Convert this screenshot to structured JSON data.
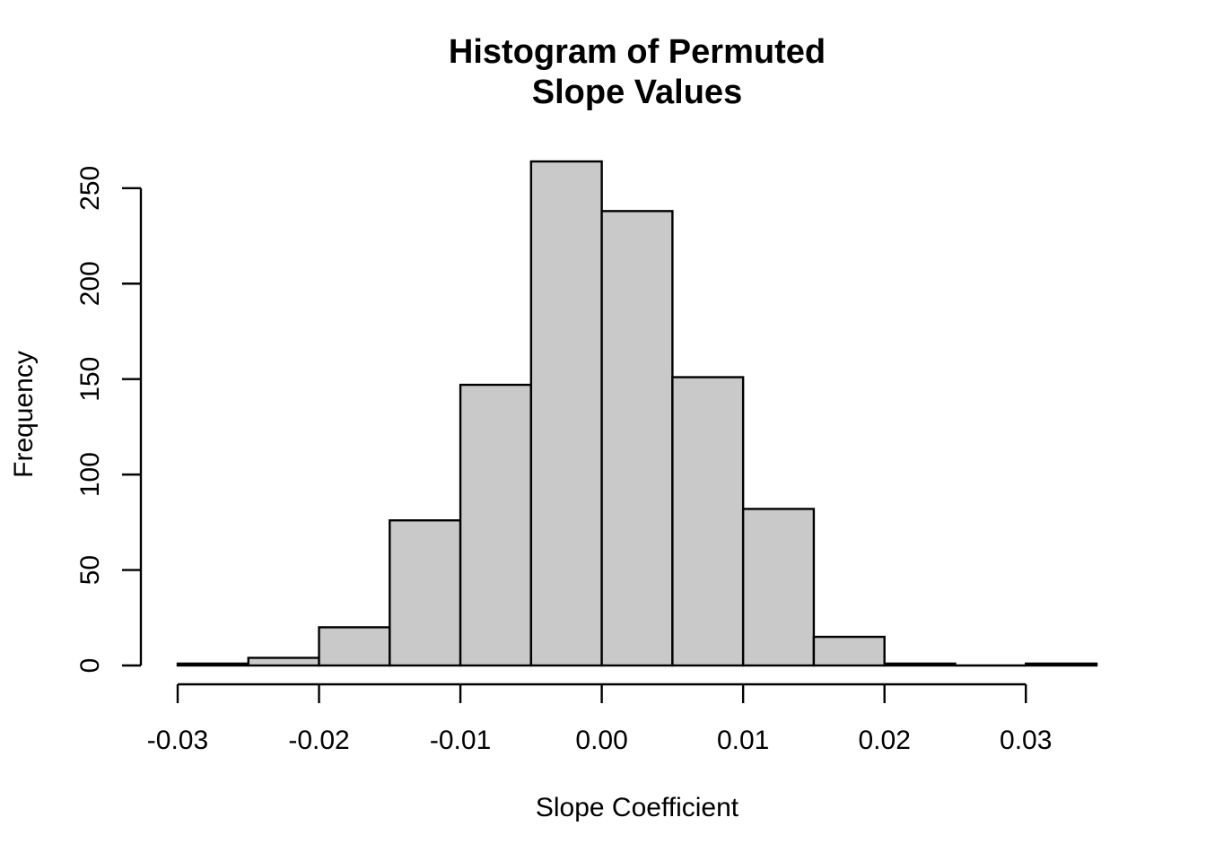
{
  "chart_data": {
    "type": "bar",
    "subtype": "histogram",
    "title": [
      "Histogram of Permuted",
      "Slope Values"
    ],
    "xlabel": "Slope Coefficient",
    "ylabel": "Frequency",
    "bin_edges": [
      -0.03,
      -0.025,
      -0.02,
      -0.015,
      -0.01,
      -0.005,
      0.0,
      0.005,
      0.01,
      0.015,
      0.02,
      0.025,
      0.03,
      0.035
    ],
    "values": [
      1,
      4,
      20,
      76,
      147,
      264,
      238,
      151,
      82,
      15,
      1,
      0,
      1
    ],
    "xlim": [
      -0.03,
      0.035
    ],
    "ylim": [
      0,
      264
    ],
    "x_ticks": [
      -0.03,
      -0.02,
      -0.01,
      0.0,
      0.01,
      0.02,
      0.03
    ],
    "x_tick_labels": [
      "-0.03",
      "-0.02",
      "-0.01",
      "0.00",
      "0.01",
      "0.02",
      "0.03"
    ],
    "y_ticks": [
      0,
      50,
      100,
      150,
      200,
      250
    ],
    "y_tick_labels": [
      "0",
      "50",
      "100",
      "150",
      "200",
      "250"
    ],
    "grid": false,
    "colors": {
      "bar_fill": "#c9c9c9",
      "bar_stroke": "#000000"
    }
  }
}
